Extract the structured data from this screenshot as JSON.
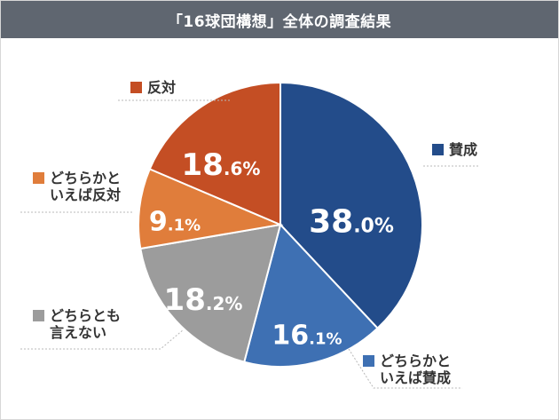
{
  "header": {
    "title": "「16球団構想」全体の調査結果"
  },
  "colors": {
    "title_bar": "#5f6670",
    "label_text": "#333333",
    "slice_stroke": "#ffffff"
  },
  "chart_data": {
    "type": "pie",
    "title": "「16球団構想」全体の調査結果",
    "start_angle_deg": 0,
    "direction": "clockwise",
    "slices": [
      {
        "label": "賛成",
        "value": 38.0,
        "int": "38",
        "dec": ".0%",
        "color": "#234c8a",
        "legend_lines": [
          "賛成"
        ]
      },
      {
        "label": "どちらかといえば賛成",
        "value": 16.1,
        "int": "16",
        "dec": ".1%",
        "color": "#3e70b3",
        "legend_lines": [
          "どちらかと",
          "いえば賛成"
        ]
      },
      {
        "label": "どちらとも言えない",
        "value": 18.2,
        "int": "18",
        "dec": ".2%",
        "color": "#9c9c9c",
        "legend_lines": [
          "どちらとも",
          "言えない"
        ]
      },
      {
        "label": "どちらかといえば反対",
        "value": 9.1,
        "int": "9",
        "dec": ".1%",
        "color": "#e07d3b",
        "legend_lines": [
          "どちらかと",
          "いえば反対"
        ]
      },
      {
        "label": "反対",
        "value": 18.6,
        "int": "18",
        "dec": ".6%",
        "color": "#c44e24",
        "legend_lines": [
          "反対"
        ]
      }
    ]
  }
}
